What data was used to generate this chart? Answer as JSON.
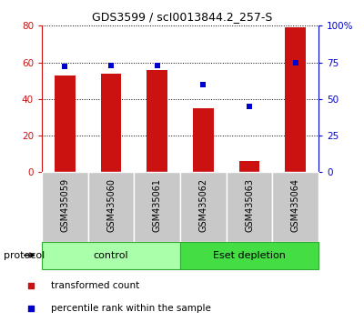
{
  "title": "GDS3599 / scI0013844.2_257-S",
  "samples": [
    "GSM435059",
    "GSM435060",
    "GSM435061",
    "GSM435062",
    "GSM435063",
    "GSM435064"
  ],
  "transformed_count": [
    53,
    54,
    56,
    35,
    6,
    79
  ],
  "percentile_rank": [
    72,
    73,
    73,
    60,
    45,
    75
  ],
  "groups": [
    {
      "label": "control",
      "samples": [
        0,
        1,
        2
      ],
      "color": "#AAFFAA"
    },
    {
      "label": "Eset depletion",
      "samples": [
        3,
        4,
        5
      ],
      "color": "#44DD44"
    }
  ],
  "ylim_left": [
    0,
    80
  ],
  "ylim_right": [
    0,
    100
  ],
  "yticks_left": [
    0,
    20,
    40,
    60,
    80
  ],
  "yticks_right": [
    0,
    25,
    50,
    75,
    100
  ],
  "ytick_labels_right": [
    "0",
    "25",
    "50",
    "75",
    "100%"
  ],
  "bar_color": "#CC1111",
  "dot_color": "#0000CC",
  "left_axis_color": "#CC1111",
  "right_axis_color": "#0000CC",
  "tick_area_color": "#C8C8C8",
  "legend_items": [
    {
      "label": "transformed count",
      "color": "#CC1111"
    },
    {
      "label": "percentile rank within the sample",
      "color": "#0000CC"
    }
  ],
  "protocol_label": "protocol",
  "bar_width": 0.45
}
